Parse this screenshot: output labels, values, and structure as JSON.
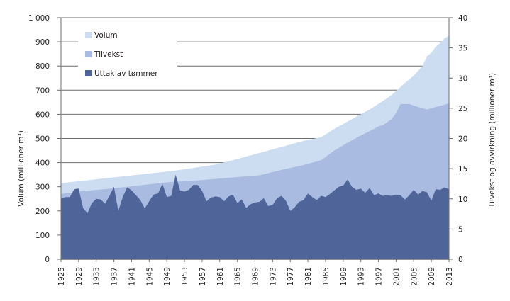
{
  "chart_data": {
    "type": "area",
    "title": "",
    "xlabel": "",
    "ylabel": "Volum (millioner m³)",
    "ylabel_right": "Tilvekst og avvirkning (millioner m³)",
    "ylim": [
      0,
      1000
    ],
    "ylim_right": [
      0,
      40
    ],
    "xlim": [
      1925,
      2013
    ],
    "grid": true,
    "legend_position": "top-left",
    "yticks": [
      "0",
      "100",
      "200",
      "300",
      "400",
      "500",
      "600",
      "700",
      "800",
      "900",
      "1 000"
    ],
    "yticks_right": [
      "0",
      "5",
      "10",
      "15",
      "20",
      "25",
      "30",
      "35",
      "40"
    ],
    "xticks": [
      "1925",
      "1929",
      "1933",
      "1937",
      "1941",
      "1945",
      "1949",
      "1953",
      "1957",
      "1961",
      "1965",
      "1969",
      "1973",
      "1977",
      "1981",
      "1985",
      "1989",
      "1993",
      "1997",
      "2001",
      "2005",
      "2009",
      "2013"
    ],
    "colors": {
      "volum": "#ccdcf1",
      "tilvekst": "#a9bbe0",
      "uttak": "#4f6599",
      "grid": "#6d6e71",
      "axis": "#6d6e71"
    },
    "series": [
      {
        "name": "Volum",
        "axis": "left",
        "x": [
          1925,
          1930,
          1935,
          1940,
          1945,
          1950,
          1955,
          1960,
          1965,
          1970,
          1975,
          1980,
          1984,
          1987,
          1990,
          1993,
          1995,
          1998,
          2000,
          2003,
          2005,
          2007,
          2008,
          2009,
          2010,
          2011,
          2012,
          2013
        ],
        "values": [
          315,
          325,
          335,
          345,
          355,
          365,
          378,
          392,
          415,
          440,
          465,
          490,
          505,
          540,
          570,
          600,
          620,
          655,
          680,
          730,
          760,
          800,
          840,
          855,
          880,
          895,
          915,
          925
        ]
      },
      {
        "name": "Tilvekst",
        "axis": "right",
        "x": [
          1925,
          1930,
          1935,
          1940,
          1945,
          1950,
          1955,
          1960,
          1965,
          1970,
          1975,
          1980,
          1984,
          1987,
          1990,
          1993,
          1995,
          1997,
          1998,
          2000,
          2001,
          2002,
          2004,
          2006,
          2008,
          2010,
          2013
        ],
        "values": [
          10.8,
          11.3,
          11.6,
          12.0,
          12.4,
          12.8,
          13.0,
          13.3,
          13.6,
          13.9,
          14.8,
          15.6,
          16.4,
          18.0,
          19.3,
          20.5,
          21.2,
          22.0,
          22.2,
          23.2,
          24.2,
          25.7,
          25.7,
          25.2,
          24.8,
          25.2,
          25.8
        ]
      },
      {
        "name": "Uttak av tømmer",
        "axis": "right",
        "x": [
          1925,
          1926,
          1927,
          1928,
          1929,
          1930,
          1931,
          1932,
          1933,
          1934,
          1935,
          1936,
          1937,
          1938,
          1939,
          1940,
          1941,
          1942,
          1943,
          1944,
          1945,
          1946,
          1947,
          1948,
          1949,
          1950,
          1951,
          1952,
          1953,
          1954,
          1955,
          1956,
          1957,
          1958,
          1959,
          1960,
          1961,
          1962,
          1963,
          1964,
          1965,
          1966,
          1967,
          1968,
          1969,
          1970,
          1971,
          1972,
          1973,
          1974,
          1975,
          1976,
          1977,
          1978,
          1979,
          1980,
          1981,
          1982,
          1983,
          1984,
          1985,
          1986,
          1987,
          1988,
          1989,
          1990,
          1991,
          1992,
          1993,
          1994,
          1995,
          1996,
          1997,
          1998,
          1999,
          2000,
          2001,
          2002,
          2003,
          2004,
          2005,
          2006,
          2007,
          2008,
          2009,
          2010,
          2011,
          2012,
          2013
        ],
        "values": [
          10.0,
          10.3,
          10.3,
          11.6,
          11.7,
          8.5,
          7.6,
          9.3,
          10.0,
          9.9,
          9.2,
          10.5,
          12.0,
          8.0,
          10.3,
          11.9,
          11.4,
          10.6,
          9.8,
          8.4,
          9.6,
          10.7,
          10.9,
          12.5,
          10.3,
          10.5,
          14.0,
          11.4,
          11.2,
          11.5,
          12.3,
          12.3,
          11.3,
          9.6,
          10.2,
          10.4,
          10.3,
          9.6,
          10.4,
          10.7,
          9.3,
          9.9,
          8.5,
          9.1,
          9.4,
          9.5,
          10.1,
          8.8,
          9.0,
          10.1,
          10.5,
          9.7,
          8.0,
          8.6,
          9.5,
          9.8,
          10.9,
          10.3,
          9.8,
          10.5,
          10.3,
          10.8,
          11.4,
          12.0,
          12.2,
          13.2,
          12.0,
          11.5,
          11.7,
          11.0,
          11.8,
          10.6,
          10.9,
          10.5,
          10.6,
          10.5,
          10.7,
          10.6,
          9.9,
          10.6,
          11.5,
          10.7,
          11.3,
          11.1,
          9.7,
          11.6,
          11.5,
          11.9,
          11.6
        ]
      }
    ],
    "legend": [
      "Volum",
      "Tilvekst",
      "Uttak av tømmer"
    ]
  }
}
